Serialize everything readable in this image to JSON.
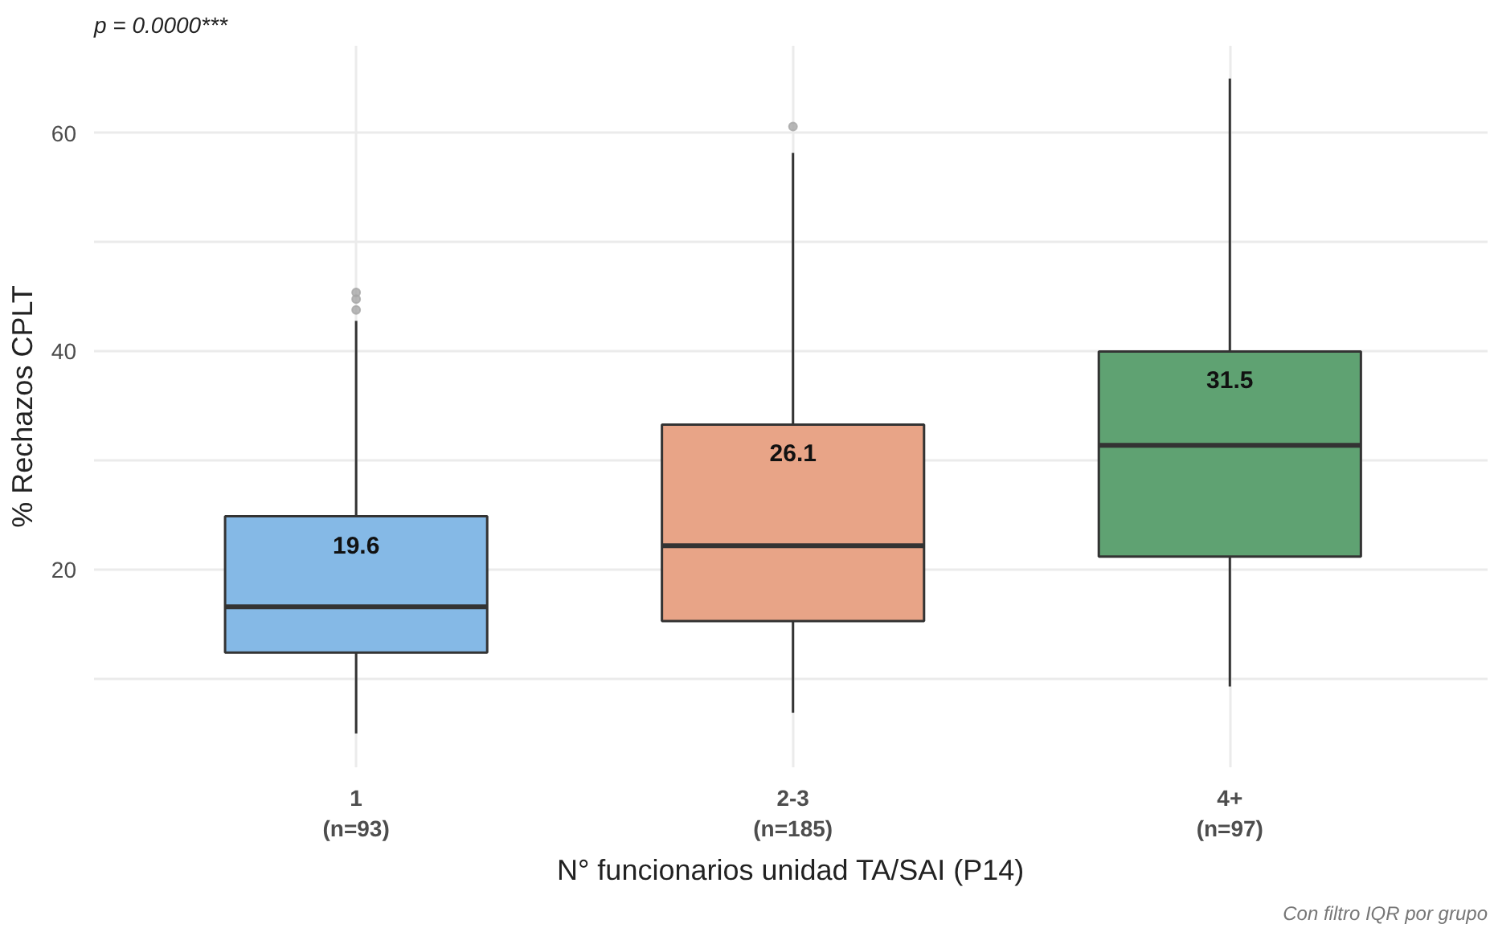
{
  "chart_data": {
    "type": "box",
    "title": "p = 0.0000***",
    "xlabel": "N° funcionarios unidad TA/SAI (P14)",
    "ylabel": "% Rechazos CPLT",
    "categories": [
      "1\n(n=93)",
      "2-3\n(n=185)",
      "4+\n(n=97)"
    ],
    "colors": [
      "#85b9e6",
      "#e8a487",
      "#5fa272"
    ],
    "boxes": [
      {
        "low": 5.0,
        "q1": 12.4,
        "median": 16.6,
        "q3": 24.9,
        "high": 42.8,
        "outliers": [
          43.8,
          44.8,
          45.4
        ]
      },
      {
        "low": 6.9,
        "q1": 15.3,
        "median": 22.2,
        "q3": 33.3,
        "high": 58.2,
        "outliers": [
          60.6
        ]
      },
      {
        "low": 9.3,
        "q1": 21.2,
        "median": 31.4,
        "q3": 40.0,
        "high": 65.0
      }
    ],
    "ylim": [
      1.9,
      68.0
    ],
    "yticks": [
      {
        "value": 10,
        "label": null
      },
      20,
      {
        "value": 30,
        "label": null
      },
      40,
      {
        "value": 50,
        "label": null
      },
      60
    ],
    "grid": true,
    "annotations": [
      "19.6",
      "26.1",
      "31.5",
      "Con filtro IQR por grupo"
    ]
  }
}
